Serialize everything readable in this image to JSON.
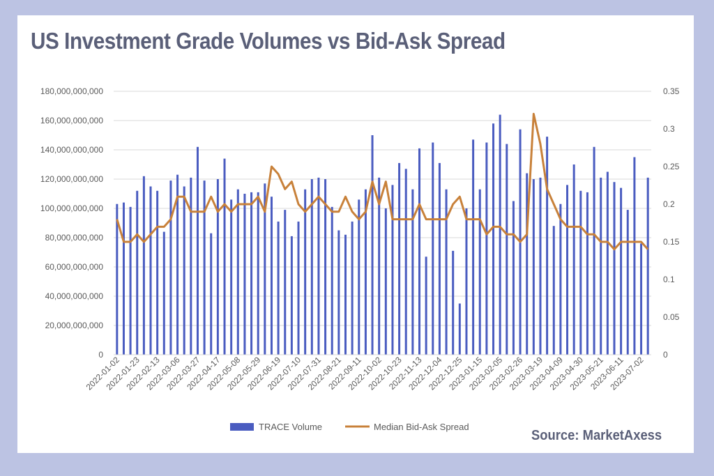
{
  "title": "US Investment Grade Volumes vs Bid-Ask Spread",
  "source": "Source: MarketAxess",
  "colors": {
    "background": "#bcc3e3",
    "card": "#ffffff",
    "bars": "#4a5cc0",
    "line": "#c8813a",
    "grid": "#d9d9d9",
    "text": "#595959",
    "title": "#5a5f78"
  },
  "chart_data": {
    "type": "bar",
    "x_tick_labels": [
      "2022-01-02",
      "2022-01-23",
      "2022-02-13",
      "2022-03-06",
      "2022-03-27",
      "2022-04-17",
      "2022-05-08",
      "2022-05-29",
      "2022-06-19",
      "2022-07-10",
      "2022-07-31",
      "2022-08-21",
      "2022-09-11",
      "2022-10-02",
      "2022-10-23",
      "2022-11-13",
      "2022-12-04",
      "2022-12-25",
      "2023-01-15",
      "2023-02-05",
      "2023-02-26",
      "2023-03-19",
      "2023-04-09",
      "2023-04-30",
      "2023-05-21",
      "2023-06-11",
      "2023-07-02"
    ],
    "y_left": {
      "ticks": [
        "0",
        "20,000,000,000",
        "40,000,000,000",
        "60,000,000,000",
        "80,000,000,000",
        "100,000,000,000",
        "120,000,000,000",
        "140,000,000,000",
        "160,000,000,000",
        "180,000,000,000"
      ],
      "range": [
        0,
        180000000000
      ]
    },
    "y_right": {
      "ticks": [
        "0",
        "0.05",
        "0.1",
        "0.15",
        "0.2",
        "0.25",
        "0.3",
        "0.35"
      ],
      "range": [
        0,
        0.35
      ]
    },
    "grid": true,
    "legend_position": "bottom",
    "series": [
      {
        "name": "TRACE Volume",
        "type": "bar",
        "axis": "left",
        "values": [
          103000000000,
          104000000000,
          101000000000,
          112000000000,
          122000000000,
          115000000000,
          112000000000,
          84000000000,
          119000000000,
          123000000000,
          115000000000,
          121000000000,
          142000000000,
          119000000000,
          83000000000,
          120000000000,
          134000000000,
          106000000000,
          113000000000,
          110000000000,
          111000000000,
          111000000000,
          117000000000,
          108000000000,
          91000000000,
          99000000000,
          81000000000,
          91000000000,
          113000000000,
          120000000000,
          121000000000,
          120000000000,
          101000000000,
          85000000000,
          82000000000,
          91000000000,
          106000000000,
          113000000000,
          150000000000,
          121000000000,
          100000000000,
          116000000000,
          131000000000,
          127000000000,
          113000000000,
          141000000000,
          67000000000,
          145000000000,
          131000000000,
          113000000000,
          71000000000,
          35000000000,
          100000000000,
          147000000000,
          113000000000,
          145000000000,
          158000000000,
          164000000000,
          144000000000,
          105000000000,
          154000000000,
          124000000000,
          120000000000,
          121000000000,
          149000000000,
          88000000000,
          103000000000,
          116000000000,
          130000000000,
          112000000000,
          111000000000,
          142000000000,
          121000000000,
          125000000000,
          118000000000,
          114000000000,
          99000000000,
          135000000000,
          76000000000,
          121000000000
        ]
      },
      {
        "name": "Median Bid-Ask Spread",
        "type": "line",
        "axis": "right",
        "values": [
          0.18,
          0.15,
          0.15,
          0.16,
          0.15,
          0.16,
          0.17,
          0.17,
          0.18,
          0.21,
          0.21,
          0.19,
          0.19,
          0.19,
          0.21,
          0.19,
          0.2,
          0.19,
          0.2,
          0.2,
          0.2,
          0.21,
          0.19,
          0.25,
          0.24,
          0.22,
          0.23,
          0.2,
          0.19,
          0.2,
          0.21,
          0.2,
          0.19,
          0.19,
          0.21,
          0.19,
          0.18,
          0.19,
          0.23,
          0.2,
          0.23,
          0.18,
          0.18,
          0.18,
          0.18,
          0.2,
          0.18,
          0.18,
          0.18,
          0.18,
          0.2,
          0.21,
          0.18,
          0.18,
          0.18,
          0.16,
          0.17,
          0.17,
          0.16,
          0.16,
          0.15,
          0.16,
          0.32,
          0.28,
          0.22,
          0.2,
          0.18,
          0.17,
          0.17,
          0.17,
          0.16,
          0.16,
          0.15,
          0.15,
          0.14,
          0.15,
          0.15,
          0.15,
          0.15,
          0.14
        ]
      }
    ]
  }
}
